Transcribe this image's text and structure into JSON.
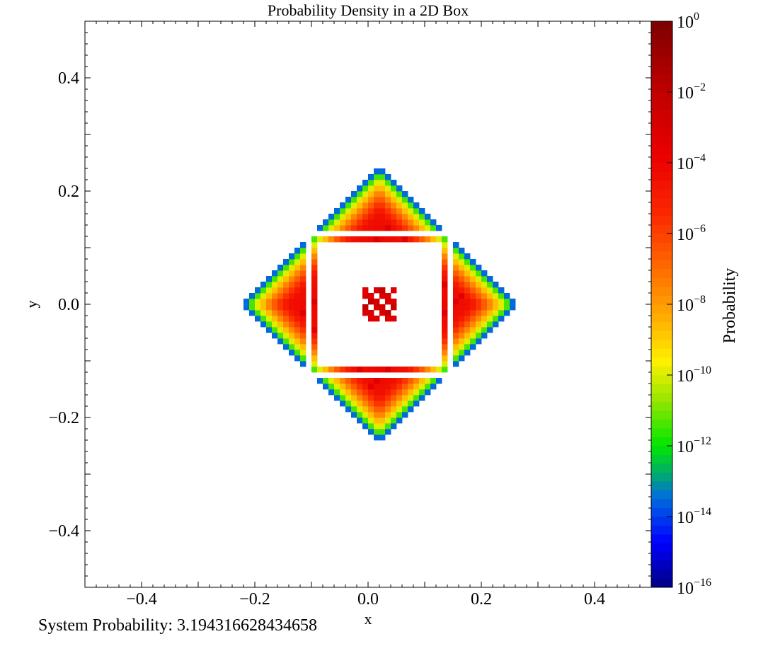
{
  "chart_data": {
    "type": "heatmap",
    "title": "Probability Density in a 2D Box",
    "xlabel": "x",
    "ylabel": "y",
    "xlim": [
      -0.5,
      0.5
    ],
    "ylim": [
      -0.5,
      0.5
    ],
    "x_ticks": [
      -0.4,
      -0.2,
      0.0,
      0.2,
      0.4
    ],
    "y_ticks": [
      -0.4,
      -0.2,
      0.0,
      0.2,
      0.4
    ],
    "x_tick_labels": [
      "−0.4",
      "−0.2",
      "0.0",
      "0.2",
      "0.4"
    ],
    "y_tick_labels": [
      "−0.4",
      "−0.2",
      "0.0",
      "0.2",
      "0.4"
    ],
    "grid_resolution": 100,
    "center": [
      0.02,
      0.0
    ],
    "support": "|x - x0| + |y| <= 0.245",
    "colorbar": {
      "label": "Probability",
      "scale": "log",
      "range": [
        1e-16,
        1
      ],
      "colormap": "jet-like (dark blue → blue → cyan → green → yellow → orange → red → dark red)",
      "tick_base": "10",
      "tick_exponents": [
        "0",
        "−2",
        "−4",
        "−6",
        "−8",
        "−10",
        "−12",
        "−14",
        "−16"
      ]
    },
    "white_rings_half_widths": [
      0.04,
      0.06,
      0.08,
      0.1,
      0.125
    ],
    "annotation": "System Probability: 3.194316628434658"
  }
}
